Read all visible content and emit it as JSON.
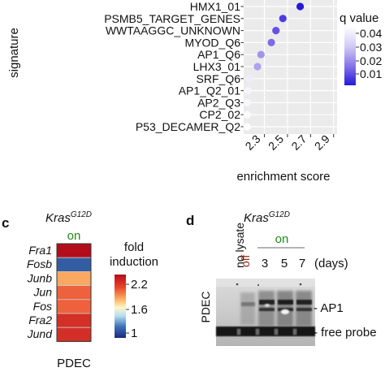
{
  "panel_b": {
    "ylabel": "signature",
    "xlabel": "enrichment score",
    "legend_title": "q value",
    "legend_ticks": [
      "0.04",
      "0.03",
      "0.02",
      "0.01"
    ],
    "colors": {
      "low_q": "#2418d8",
      "high_q": "#ffffff"
    }
  },
  "chart_data": [
    {
      "type": "scatter",
      "title": "",
      "xlabel": "enrichment score",
      "ylabel": "signature",
      "xlim": [
        2.12,
        2.93
      ],
      "xticks": [
        "2.3",
        "2.5",
        "2.7",
        "2.9"
      ],
      "categories": [
        "HMX1_01",
        "PSMB5_TARGET_GENES",
        "WWTAAGGC_UNKNOWN",
        "MYOD_Q6",
        "AP1_Q6",
        "LHX3_01",
        "SRF_Q6",
        "AP1_Q2_01",
        "AP2_Q3",
        "CP2_02",
        "P53_DECAMER_Q2"
      ],
      "x": [
        2.61,
        2.46,
        2.4,
        2.36,
        2.27,
        2.24,
        2.17,
        2.16,
        2.15,
        2.15,
        2.15
      ],
      "q": [
        0.005,
        0.012,
        0.016,
        0.02,
        0.026,
        0.028,
        0.04,
        0.042,
        0.043,
        0.044,
        0.045
      ],
      "legend": {
        "title": "q value",
        "ticks": [
          0.04,
          0.03,
          0.02,
          0.01
        ]
      }
    },
    {
      "type": "heatmap",
      "title": "Kras",
      "superscript": "G12D",
      "condition": "on",
      "rows": [
        "Fra1",
        "Fosb",
        "Junb",
        "Jun",
        "Fos",
        "Fra2",
        "Jund"
      ],
      "values": [
        2.2,
        1.15,
        1.75,
        1.9,
        1.9,
        2.05,
        2.05
      ],
      "xlabel": "PDEC",
      "legend": {
        "title_line1": "fold",
        "title_line2": "induction",
        "ticks": [
          "2.2",
          "1.6",
          "1"
        ],
        "range": [
          1,
          2.2
        ]
      }
    }
  ],
  "panel_c": {
    "letter": "c",
    "kras": "Kras",
    "kras_sup": "G12D",
    "on_label": "on",
    "on_color": "#1d8a1d",
    "genes": [
      "Fra1",
      "Fosb",
      "Junb",
      "Jun",
      "Fos",
      "Fra2",
      "Jund"
    ],
    "xlabel": "PDEC",
    "legend_title1": "fold",
    "legend_title2": "induction",
    "legend_ticks": [
      "2.2",
      "1.6",
      "1"
    ]
  },
  "panel_d": {
    "letter": "d",
    "lanes": {
      "no_lysate": "no lysate",
      "off": "off",
      "d3": "3",
      "d5": "5",
      "d7": "7",
      "days": "(days)"
    },
    "kras": "Kras",
    "kras_sup": "G12D",
    "on_label": "on",
    "on_color": "#1d8a1d",
    "off_color": "#8a2c14",
    "side_label": "PDEC",
    "band_labels": {
      "ap1": "- AP1",
      "free_probe": "- free probe"
    }
  }
}
